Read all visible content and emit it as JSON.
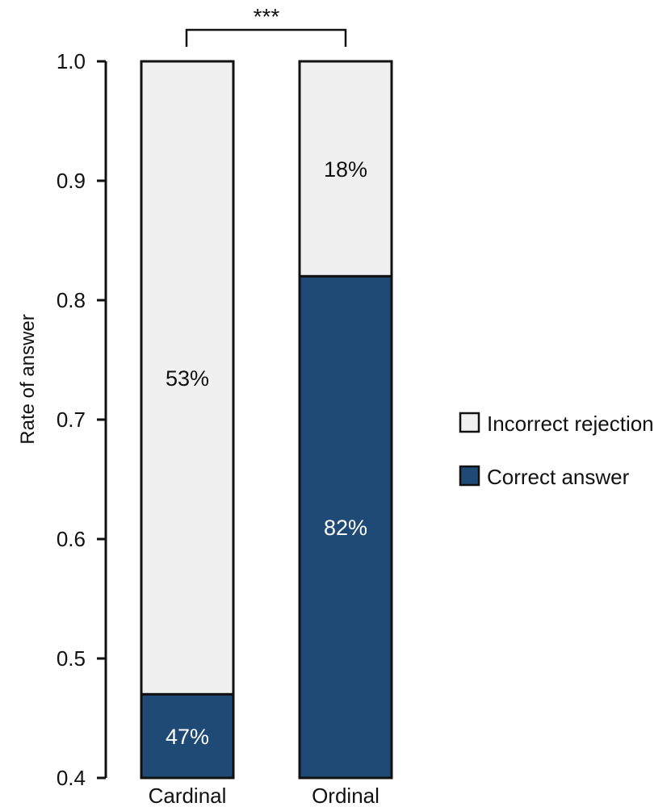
{
  "chart_data": {
    "type": "bar",
    "stacked": true,
    "categories": [
      "Cardinal",
      "Ordinal"
    ],
    "series": [
      {
        "name": "Correct answer",
        "values": [
          0.47,
          0.82
        ],
        "labels": [
          "47%",
          "82%"
        ],
        "color": "#1f4a75"
      },
      {
        "name": "Incorrect rejection",
        "values": [
          0.53,
          0.18
        ],
        "labels": [
          "53%",
          "18%"
        ],
        "color": "#f0f0f0"
      }
    ],
    "ylabel": "Rate of answer",
    "xlabel": "",
    "ylim": [
      0.4,
      1.0
    ],
    "yticks": [
      "0.4",
      "0.5",
      "0.6",
      "0.7",
      "0.8",
      "0.9",
      "1.0"
    ],
    "legend": {
      "placement": "right",
      "entries": [
        "Incorrect rejection",
        "Correct answer"
      ]
    },
    "significance": {
      "label": "***",
      "between": [
        "Cardinal",
        "Ordinal"
      ]
    },
    "grid": false
  }
}
